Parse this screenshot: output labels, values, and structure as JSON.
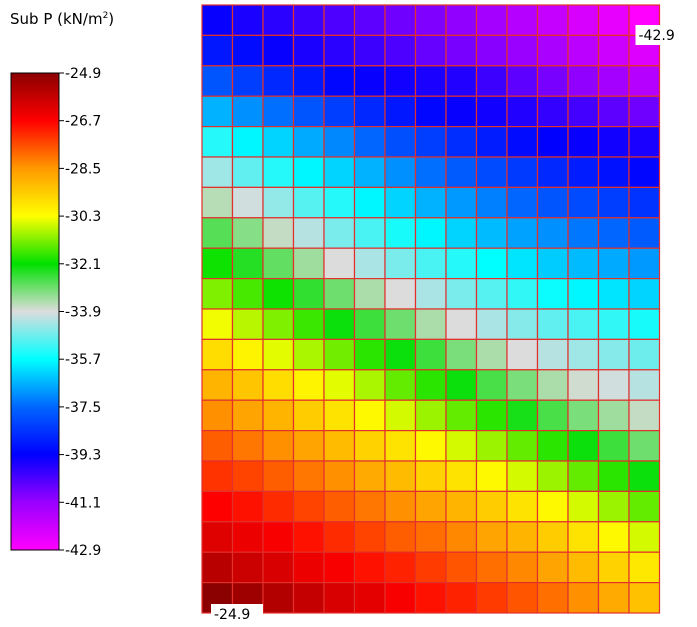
{
  "title": {
    "text": "Sub P  (kN/m",
    "sup": "2",
    "suffix": ")"
  },
  "colors": {
    "grid_line": "#e2302c",
    "scale": [
      "#8b0000",
      "#ff0000",
      "#ff9900",
      "#ffff00",
      "#00e000",
      "#dcdcdc",
      "#00ffff",
      "#0066ff",
      "#0000ff",
      "#9900ff",
      "#ff00ff"
    ]
  },
  "chart_data": {
    "type": "heatmap",
    "title": "Sub P (kN/m²)",
    "colorbar": {
      "max": -24.9,
      "min": -42.9,
      "tick_labels": [
        "-24.9",
        "-26.7",
        "-28.5",
        "-30.3",
        "-32.1",
        "-33.9",
        "-35.7",
        "-37.5",
        "-39.3",
        "-41.1",
        "-42.9"
      ]
    },
    "rows": 20,
    "cols": 15,
    "min_label": "-42.9",
    "max_label": "-24.9",
    "min_location": "top-right",
    "max_location": "bottom-left",
    "values": [
      [
        -39.4,
        -39.6,
        -39.8,
        -40.0,
        -40.2,
        -40.4,
        -40.6,
        -40.8,
        -41.0,
        -41.3,
        -41.6,
        -41.9,
        -42.2,
        -42.5,
        -42.9
      ],
      [
        -38.9,
        -39.1,
        -39.4,
        -39.6,
        -39.8,
        -40.0,
        -40.2,
        -40.5,
        -40.7,
        -40.9,
        -41.1,
        -41.4,
        -41.7,
        -42.0,
        -42.3
      ],
      [
        -37.8,
        -38.2,
        -38.6,
        -38.9,
        -39.2,
        -39.4,
        -39.5,
        -39.6,
        -39.7,
        -40.0,
        -40.4,
        -40.7,
        -41.0,
        -41.3,
        -41.6
      ],
      [
        -36.6,
        -37.0,
        -37.4,
        -37.8,
        -38.2,
        -38.6,
        -38.9,
        -39.2,
        -39.4,
        -39.5,
        -39.7,
        -39.9,
        -40.1,
        -40.4,
        -40.6
      ],
      [
        -35.4,
        -35.8,
        -36.2,
        -36.7,
        -37.1,
        -37.5,
        -37.9,
        -38.2,
        -38.5,
        -38.8,
        -39.1,
        -39.3,
        -39.4,
        -39.5,
        -39.6
      ],
      [
        -34.4,
        -34.9,
        -35.4,
        -35.8,
        -36.2,
        -36.6,
        -37.0,
        -37.4,
        -37.7,
        -38.0,
        -38.3,
        -38.6,
        -38.8,
        -39.0,
        -39.2
      ],
      [
        -33.6,
        -34.0,
        -34.5,
        -35.0,
        -35.4,
        -35.8,
        -36.2,
        -36.6,
        -36.9,
        -37.2,
        -37.5,
        -37.8,
        -38.0,
        -38.2,
        -38.4
      ],
      [
        -32.8,
        -33.2,
        -33.7,
        -34.2,
        -34.7,
        -35.1,
        -35.5,
        -35.8,
        -36.2,
        -36.5,
        -36.8,
        -37.0,
        -37.3,
        -37.5,
        -37.7
      ],
      [
        -32.0,
        -32.4,
        -32.9,
        -33.4,
        -33.9,
        -34.3,
        -34.7,
        -35.1,
        -35.4,
        -35.7,
        -36.0,
        -36.3,
        -36.5,
        -36.7,
        -36.9
      ],
      [
        -31.2,
        -31.6,
        -32.0,
        -32.5,
        -33.0,
        -33.5,
        -33.9,
        -34.3,
        -34.7,
        -35.0,
        -35.3,
        -35.6,
        -35.8,
        -36.0,
        -36.2
      ],
      [
        -30.4,
        -30.8,
        -31.2,
        -31.7,
        -32.2,
        -32.6,
        -33.0,
        -33.5,
        -33.9,
        -34.3,
        -34.6,
        -34.9,
        -35.1,
        -35.3,
        -35.5
      ],
      [
        -29.7,
        -30.1,
        -30.5,
        -30.9,
        -31.3,
        -31.8,
        -32.2,
        -32.6,
        -33.1,
        -33.5,
        -33.9,
        -34.2,
        -34.4,
        -34.6,
        -34.8
      ],
      [
        -29.0,
        -29.3,
        -29.7,
        -30.1,
        -30.5,
        -30.9,
        -31.4,
        -31.8,
        -32.2,
        -32.7,
        -33.1,
        -33.5,
        -33.8,
        -34.0,
        -34.2
      ],
      [
        -28.4,
        -28.7,
        -29.0,
        -29.4,
        -29.8,
        -30.2,
        -30.6,
        -31.0,
        -31.4,
        -31.8,
        -32.3,
        -32.7,
        -33.1,
        -33.4,
        -33.7
      ],
      [
        -27.8,
        -28.1,
        -28.4,
        -28.7,
        -29.1,
        -29.5,
        -29.8,
        -30.2,
        -30.6,
        -31.0,
        -31.4,
        -31.8,
        -32.2,
        -32.6,
        -33.0
      ],
      [
        -27.3,
        -27.5,
        -27.8,
        -28.1,
        -28.4,
        -28.8,
        -29.1,
        -29.5,
        -29.8,
        -30.2,
        -30.6,
        -31.0,
        -31.4,
        -31.8,
        -32.2
      ],
      [
        -26.7,
        -26.9,
        -27.2,
        -27.5,
        -27.8,
        -28.1,
        -28.4,
        -28.7,
        -29.0,
        -29.4,
        -29.8,
        -30.2,
        -30.6,
        -31.0,
        -31.4
      ],
      [
        -26.2,
        -26.4,
        -26.6,
        -26.9,
        -27.2,
        -27.5,
        -27.8,
        -28.0,
        -28.3,
        -28.7,
        -29.0,
        -29.4,
        -29.8,
        -30.2,
        -30.6
      ],
      [
        -25.6,
        -25.9,
        -26.1,
        -26.4,
        -26.6,
        -26.9,
        -27.1,
        -27.4,
        -27.7,
        -28.0,
        -28.3,
        -28.7,
        -29.1,
        -29.5,
        -29.9
      ],
      [
        -24.9,
        -25.2,
        -25.5,
        -25.8,
        -26.1,
        -26.3,
        -26.6,
        -26.9,
        -27.1,
        -27.4,
        -27.7,
        -28.0,
        -28.4,
        -28.8,
        -29.2
      ]
    ]
  }
}
